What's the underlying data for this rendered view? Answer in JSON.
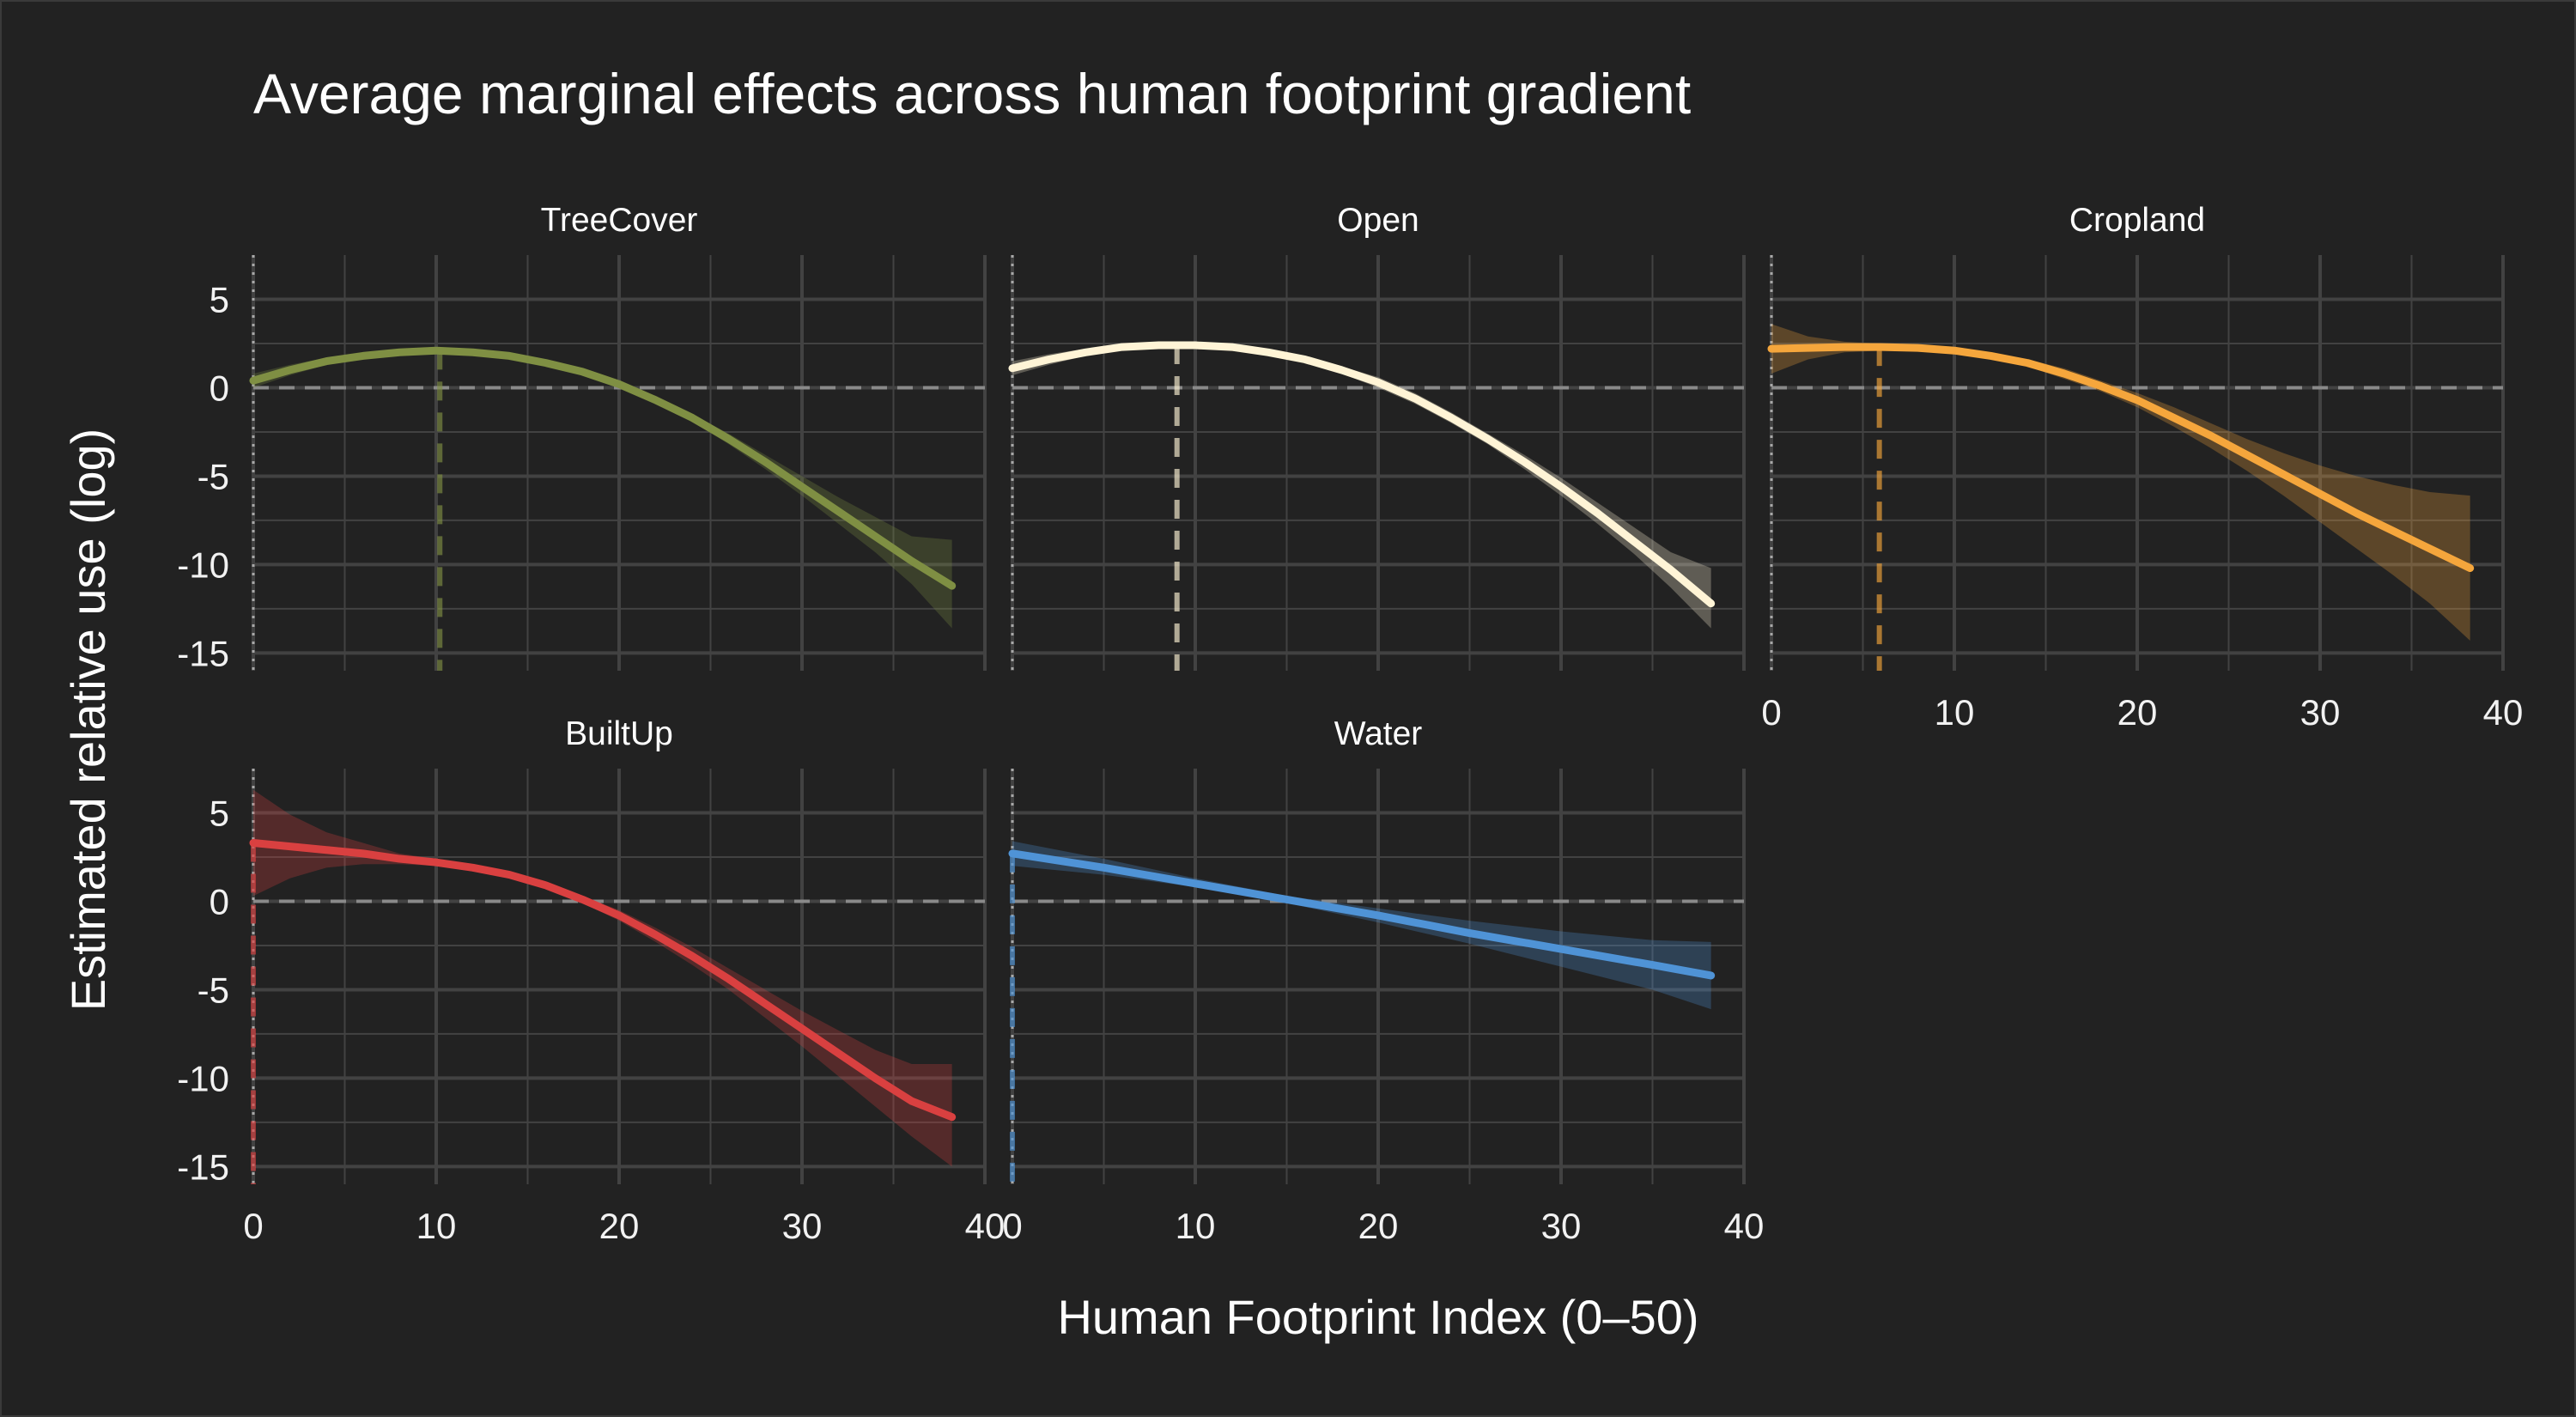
{
  "chart_data": {
    "type": "line",
    "title": "Average marginal effects across human footprint gradient",
    "xlabel": "Human Footprint Index (0–50)",
    "ylabel": "Estimated relative use (log)",
    "xlim": [
      0,
      40
    ],
    "ylim": [
      -16,
      7.5
    ],
    "xticks": [
      0,
      10,
      20,
      30,
      40
    ],
    "yticks": [
      5,
      0,
      -5,
      -10,
      -15
    ],
    "grid": true,
    "reference_lines": {
      "horizontal_y": 0,
      "vertical_x": 0
    },
    "layout": "facets 3 columns x 2 rows",
    "panels": [
      {
        "name": "TreeCover",
        "color": "#7f8f43",
        "peak_x": 10.2,
        "x": [
          0,
          2,
          4,
          6,
          8,
          10,
          12,
          14,
          16,
          18,
          20,
          22,
          24,
          26,
          28,
          30,
          32,
          34,
          36,
          38.2
        ],
        "values": [
          0.4,
          1.0,
          1.5,
          1.8,
          2.0,
          2.1,
          2.0,
          1.8,
          1.4,
          0.9,
          0.2,
          -0.7,
          -1.7,
          -2.9,
          -4.2,
          -5.6,
          -7.0,
          -8.4,
          -9.8,
          -11.2
        ],
        "lower": [
          0.0,
          0.7,
          1.3,
          1.6,
          1.9,
          2.0,
          1.9,
          1.7,
          1.3,
          0.8,
          0.0,
          -0.9,
          -1.9,
          -3.2,
          -4.6,
          -6.1,
          -7.7,
          -9.3,
          -11.1,
          -13.6
        ],
        "upper": [
          0.8,
          1.3,
          1.7,
          2.0,
          2.1,
          2.2,
          2.1,
          1.9,
          1.6,
          1.1,
          0.4,
          -0.5,
          -1.5,
          -2.6,
          -3.8,
          -5.0,
          -6.2,
          -7.3,
          -8.4,
          -8.6
        ]
      },
      {
        "name": "Open",
        "color": "#fff4d6",
        "peak_x": 9.0,
        "x": [
          0,
          2,
          4,
          6,
          8,
          10,
          12,
          14,
          16,
          18,
          20,
          22,
          24,
          26,
          28,
          30,
          32,
          34,
          36,
          38.2
        ],
        "values": [
          1.1,
          1.6,
          2.0,
          2.3,
          2.4,
          2.4,
          2.3,
          2.0,
          1.6,
          1.0,
          0.3,
          -0.6,
          -1.7,
          -2.9,
          -4.2,
          -5.6,
          -7.1,
          -8.7,
          -10.3,
          -12.2
        ],
        "lower": [
          0.7,
          1.3,
          1.8,
          2.1,
          2.3,
          2.3,
          2.2,
          1.9,
          1.5,
          0.8,
          0.0,
          -0.9,
          -2.0,
          -3.2,
          -4.6,
          -6.1,
          -7.7,
          -9.4,
          -11.3,
          -13.6
        ],
        "upper": [
          1.5,
          1.9,
          2.2,
          2.5,
          2.5,
          2.5,
          2.4,
          2.1,
          1.8,
          1.2,
          0.6,
          -0.3,
          -1.4,
          -2.6,
          -3.8,
          -5.1,
          -6.5,
          -7.9,
          -9.3,
          -10.2
        ]
      },
      {
        "name": "Cropland",
        "color": "#f5a63c",
        "peak_x": 5.9,
        "x": [
          0,
          2,
          4,
          6,
          8,
          10,
          12,
          14,
          16,
          18,
          20,
          22,
          24,
          26,
          28,
          30,
          32,
          34,
          36,
          38.2
        ],
        "values": [
          2.2,
          2.25,
          2.3,
          2.3,
          2.25,
          2.1,
          1.8,
          1.4,
          0.8,
          0.1,
          -0.7,
          -1.7,
          -2.7,
          -3.8,
          -4.9,
          -6.0,
          -7.1,
          -8.1,
          -9.1,
          -10.2
        ],
        "lower": [
          0.8,
          1.6,
          2.0,
          2.1,
          2.1,
          2.0,
          1.7,
          1.2,
          0.5,
          -0.2,
          -1.1,
          -2.2,
          -3.4,
          -4.7,
          -6.1,
          -7.6,
          -9.1,
          -10.6,
          -12.2,
          -14.3
        ],
        "upper": [
          3.6,
          2.9,
          2.6,
          2.5,
          2.4,
          2.2,
          1.9,
          1.6,
          1.1,
          0.4,
          -0.3,
          -1.1,
          -2.0,
          -2.9,
          -3.7,
          -4.4,
          -5.0,
          -5.5,
          -5.9,
          -6.1
        ]
      },
      {
        "name": "BuiltUp",
        "color": "#d94040",
        "peak_x": 0,
        "x": [
          0,
          2,
          4,
          6,
          8,
          10,
          12,
          14,
          16,
          18,
          20,
          22,
          24,
          26,
          28,
          30,
          32,
          34,
          36,
          38.2
        ],
        "values": [
          3.3,
          3.1,
          2.9,
          2.7,
          2.4,
          2.2,
          1.9,
          1.5,
          0.9,
          0.1,
          -0.8,
          -1.9,
          -3.1,
          -4.4,
          -5.8,
          -7.2,
          -8.6,
          -10.0,
          -11.3,
          -12.2
        ],
        "lower": [
          0.3,
          1.3,
          1.9,
          2.1,
          2.1,
          2.0,
          1.7,
          1.3,
          0.7,
          -0.1,
          -1.1,
          -2.3,
          -3.6,
          -5.0,
          -6.6,
          -8.2,
          -9.9,
          -11.6,
          -13.3,
          -15.0
        ],
        "upper": [
          6.3,
          4.9,
          3.9,
          3.3,
          2.7,
          2.4,
          2.1,
          1.7,
          1.1,
          0.3,
          -0.5,
          -1.5,
          -2.6,
          -3.8,
          -5.0,
          -6.2,
          -7.3,
          -8.4,
          -9.2,
          -9.2
        ]
      },
      {
        "name": "Water",
        "color": "#4f93d6",
        "peak_x": 0,
        "x": [
          0,
          5,
          10,
          15,
          20,
          25,
          30,
          35,
          38.2
        ],
        "values": [
          2.7,
          1.9,
          1.0,
          0.1,
          -0.8,
          -1.8,
          -2.7,
          -3.6,
          -4.2
        ],
        "lower": [
          2.0,
          1.5,
          0.8,
          -0.1,
          -1.2,
          -2.4,
          -3.7,
          -5.0,
          -6.1
        ],
        "upper": [
          3.4,
          2.4,
          1.3,
          0.3,
          -0.4,
          -1.1,
          -1.7,
          -2.2,
          -2.3
        ]
      }
    ]
  }
}
